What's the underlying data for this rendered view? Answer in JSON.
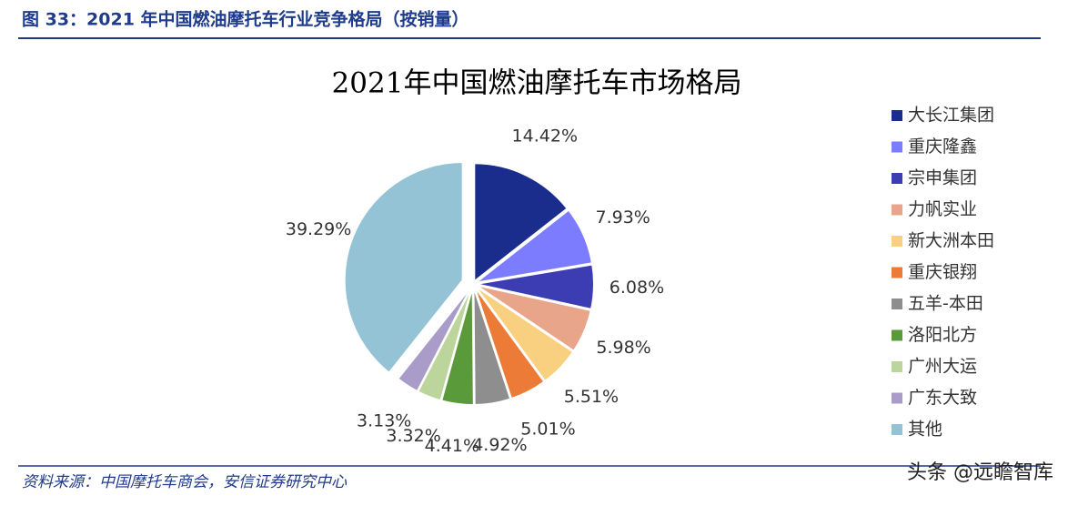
{
  "figure": {
    "caption": "图 33：2021 年中国燃油摩托车行业竞争格局（按销量）",
    "source": "资料来源：中国摩托车商会，安信证券研究中心",
    "watermark": "头条 @远瞻智库"
  },
  "chart_data": {
    "type": "pie",
    "title": "2021年中国燃油摩托车市场格局",
    "categories": [
      "大长江集团",
      "重庆隆鑫",
      "宗申集团",
      "力帆实业",
      "新大洲本田",
      "重庆银翔",
      "五羊-本田",
      "洛阳北方",
      "广州大运",
      "广东大致",
      "其他"
    ],
    "values": [
      14.42,
      7.93,
      6.08,
      5.98,
      5.51,
      5.01,
      4.92,
      4.41,
      3.32,
      3.13,
      39.29
    ],
    "value_labels": [
      "14.42%",
      "7.93%",
      "6.08%",
      "5.98%",
      "5.51%",
      "5.01%",
      "4.92%",
      "4.41%",
      "3.32%",
      "3.13%",
      "39.29%"
    ],
    "colors": [
      "#1a2d8c",
      "#7c7cff",
      "#3d3db3",
      "#e8a58a",
      "#f9d080",
      "#eb7b36",
      "#8e8e8e",
      "#5a9a3a",
      "#bcd59c",
      "#a99cc8",
      "#95c3d6"
    ],
    "legend": "right"
  }
}
